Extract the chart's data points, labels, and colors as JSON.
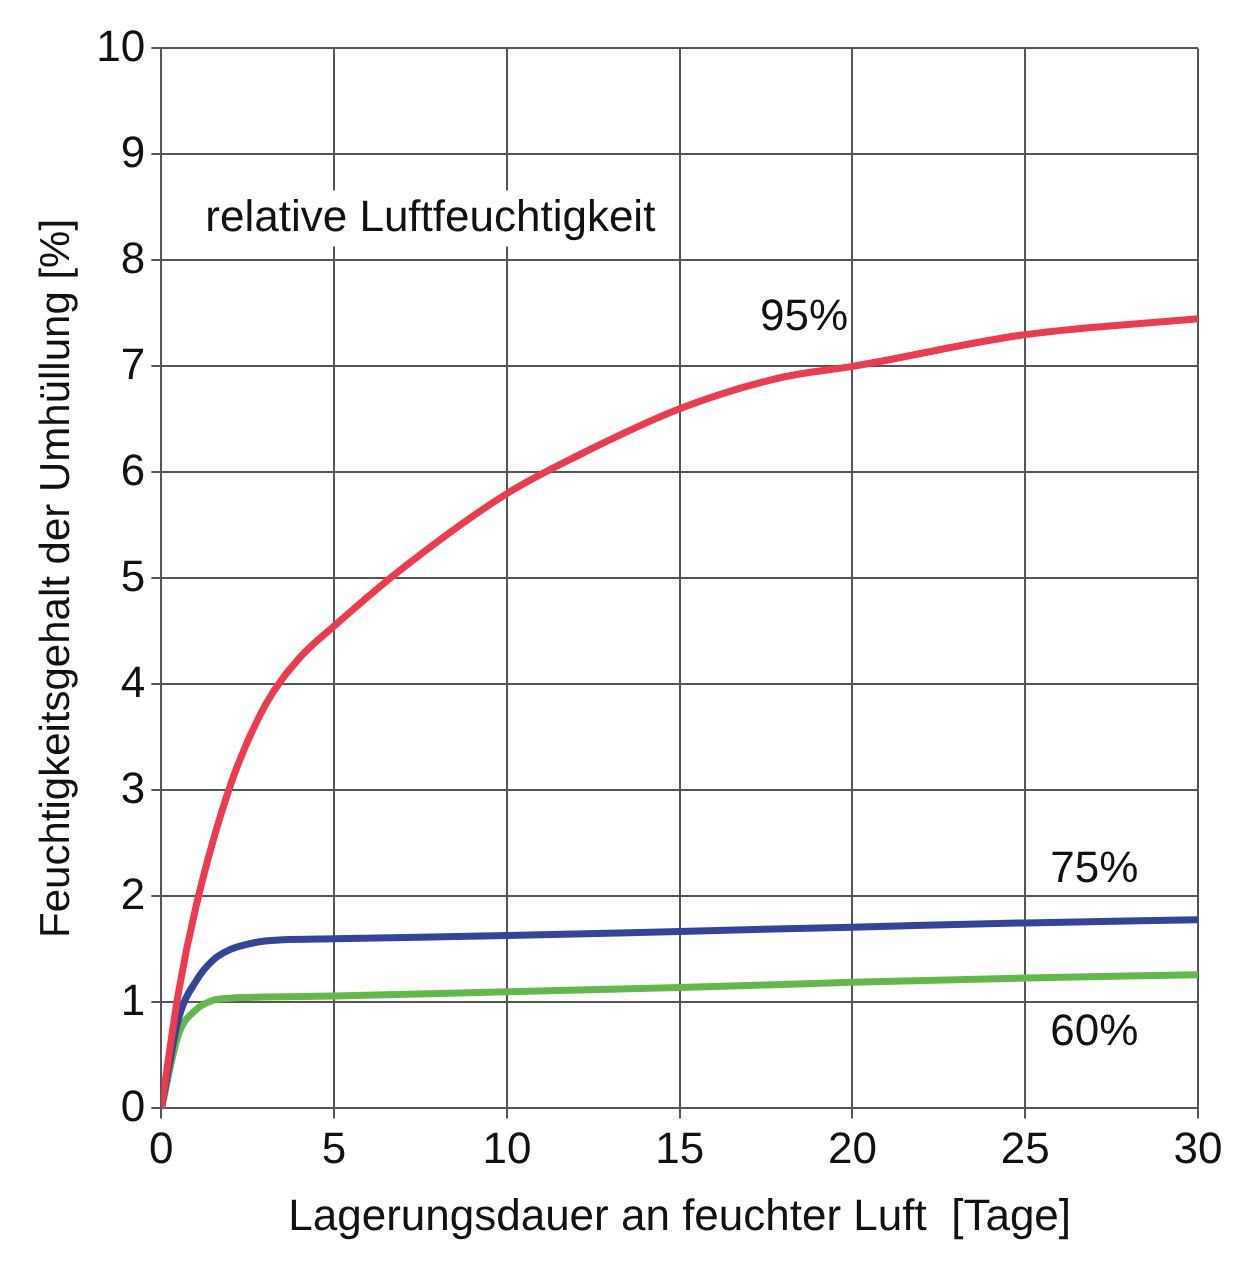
{
  "chart_data": {
    "type": "line",
    "xlabel": "Lagerungsdauer an feuchter Luft  [Tage]",
    "ylabel": "Feuchtigkeitsgehalt der Umhüllung [%]",
    "xlim": [
      0,
      30
    ],
    "xticks": [
      0,
      5,
      10,
      15,
      20,
      25,
      30
    ],
    "ylim": [
      0,
      10
    ],
    "yticks": [
      0,
      1,
      2,
      3,
      4,
      5,
      6,
      7,
      8,
      9,
      10
    ],
    "grid": true,
    "legend": false,
    "marker": "none",
    "line_style": "solid",
    "annotations": [
      "relative Luftfeuchtigkeit"
    ],
    "series": [
      {
        "name": "95%",
        "color": "#ee3a4e",
        "x": [
          0,
          0.5,
          1,
          2,
          3,
          4,
          5,
          7,
          10,
          12,
          15,
          18,
          20,
          25,
          30
        ],
        "values": [
          0,
          1.1,
          1.9,
          3.05,
          3.8,
          4.25,
          4.55,
          5.1,
          5.8,
          6.15,
          6.6,
          6.9,
          7.0,
          7.3,
          7.45
        ]
      },
      {
        "name": "75%",
        "color": "#34449a",
        "x": [
          0,
          0.5,
          1,
          1.5,
          2,
          2.5,
          3,
          3.5,
          5,
          10,
          15,
          20,
          25,
          30
        ],
        "values": [
          0,
          0.85,
          1.2,
          1.4,
          1.5,
          1.55,
          1.58,
          1.59,
          1.6,
          1.63,
          1.67,
          1.71,
          1.75,
          1.78
        ]
      },
      {
        "name": "60%",
        "color": "#63b84a",
        "x": [
          0,
          0.5,
          1,
          1.5,
          2,
          3,
          5,
          10,
          15,
          20,
          25,
          30
        ],
        "values": [
          0,
          0.7,
          0.93,
          1.02,
          1.04,
          1.05,
          1.06,
          1.1,
          1.14,
          1.19,
          1.23,
          1.26
        ]
      }
    ]
  }
}
